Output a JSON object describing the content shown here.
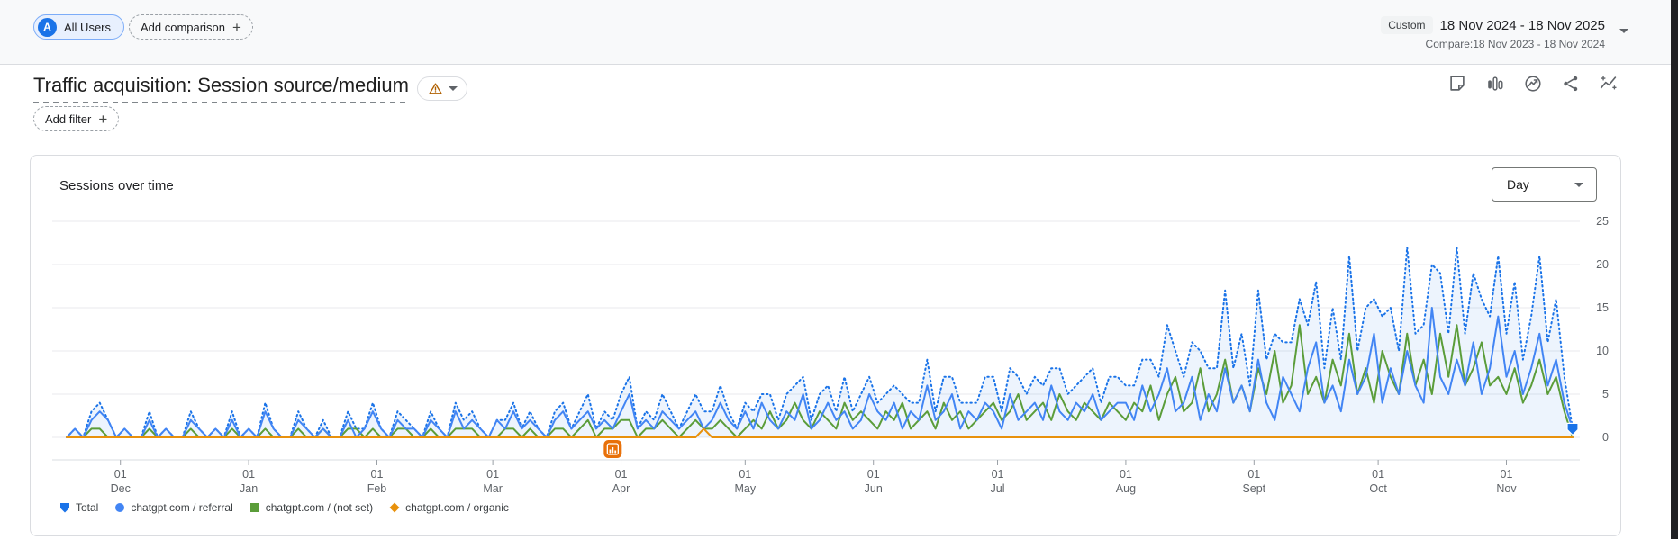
{
  "topbar": {
    "badge_letter": "A",
    "all_users_label": "All Users",
    "add_comparison_label": "Add comparison",
    "custom_label": "Custom",
    "date_range": "18 Nov 2024 - 18 Nov 2025",
    "compare_range": "Compare:18 Nov 2023 - 18 Nov 2024"
  },
  "report": {
    "title": "Traffic acquisition: Session source/medium",
    "add_filter_label": "Add filter",
    "action_icons": [
      "notes-icon",
      "bar-chart-icon",
      "benchmark-icon",
      "share-icon",
      "insights-icon"
    ]
  },
  "card": {
    "title": "Sessions over time",
    "granularity_value": "Day"
  },
  "colors": {
    "accent_blue": "#1a73e8",
    "referral_blue": "#4285f4",
    "notset_green": "#5b9d3a",
    "organic_orange": "#e8910c",
    "anomaly_orange": "#e8710a",
    "area_fill": "rgba(26,115,232,0.08)",
    "grid": "#e8eaed",
    "axis_text": "#5f6368",
    "border": "#dadce0"
  },
  "chart_data": {
    "type": "line",
    "title": "Sessions over time",
    "granularity": "Day",
    "x_range": [
      "18 Nov 2024",
      "18 Nov 2025"
    ],
    "total_days": 364,
    "step_days": 2,
    "ylim": [
      0,
      25
    ],
    "y_ticks": [
      0,
      5,
      10,
      15,
      20,
      25
    ],
    "grid": "horizontal",
    "legend_position": "bottom",
    "anomaly_day": 132,
    "x_ticks": [
      {
        "day": 13,
        "line1": "01",
        "line2": "Dec"
      },
      {
        "day": 44,
        "line1": "01",
        "line2": "Jan"
      },
      {
        "day": 75,
        "line1": "01",
        "line2": "Feb"
      },
      {
        "day": 103,
        "line1": "01",
        "line2": "Mar"
      },
      {
        "day": 134,
        "line1": "01",
        "line2": "Apr"
      },
      {
        "day": 164,
        "line1": "01",
        "line2": "May"
      },
      {
        "day": 195,
        "line1": "01",
        "line2": "Jun"
      },
      {
        "day": 225,
        "line1": "01",
        "line2": "Jul"
      },
      {
        "day": 256,
        "line1": "01",
        "line2": "Aug"
      },
      {
        "day": 287,
        "line1": "01",
        "line2": "Sept"
      },
      {
        "day": 317,
        "line1": "01",
        "line2": "Oct"
      },
      {
        "day": 348,
        "line1": "01",
        "line2": "Nov"
      }
    ],
    "series": [
      {
        "name": "Total",
        "color": "#1a73e8",
        "line_style": "dotted",
        "marker": "pentagon",
        "area_fill": "rgba(26,115,232,0.08)",
        "end_marker": true,
        "values": [
          0,
          1,
          0,
          3,
          4,
          2,
          0,
          1,
          0,
          0,
          3,
          0,
          1,
          0,
          0,
          3,
          1,
          0,
          1,
          0,
          3,
          0,
          1,
          0,
          4,
          1,
          0,
          0,
          3,
          1,
          0,
          2,
          0,
          0,
          3,
          1,
          1,
          4,
          1,
          0,
          3,
          2,
          1,
          0,
          3,
          1,
          0,
          4,
          2,
          3,
          1,
          0,
          2,
          2,
          4,
          1,
          3,
          1,
          0,
          3,
          4,
          1,
          3,
          5,
          1,
          3,
          2,
          5,
          7,
          1,
          3,
          2,
          5,
          3,
          1,
          3,
          5,
          3,
          3,
          6,
          3,
          1,
          4,
          3,
          5,
          5,
          2,
          5,
          6,
          7,
          2,
          5,
          6,
          3,
          7,
          3,
          5,
          7,
          4,
          5,
          6,
          5,
          4,
          4,
          9,
          3,
          7,
          7,
          4,
          4,
          4,
          7,
          7,
          3,
          8,
          7,
          5,
          7,
          6,
          8,
          8,
          5,
          6,
          7,
          8,
          4,
          7,
          7,
          6,
          6,
          9,
          9,
          7,
          13,
          10,
          7,
          11,
          10,
          8,
          8,
          17,
          8,
          12,
          6,
          17,
          9,
          12,
          11,
          11,
          16,
          13,
          18,
          8,
          15,
          9,
          21,
          10,
          15,
          16,
          14,
          15,
          10,
          22,
          12,
          13,
          20,
          19,
          12,
          22,
          12,
          19,
          16,
          14,
          21,
          12,
          18,
          9,
          14,
          21,
          11,
          16,
          7,
          1
        ]
      },
      {
        "name": "chatgpt.com / referral",
        "color": "#4285f4",
        "line_style": "solid",
        "marker": "circle",
        "values": [
          0,
          1,
          0,
          2,
          3,
          2,
          0,
          1,
          0,
          0,
          2,
          0,
          1,
          0,
          0,
          2,
          1,
          0,
          1,
          0,
          2,
          0,
          1,
          0,
          3,
          1,
          0,
          0,
          2,
          1,
          0,
          1,
          0,
          0,
          2,
          0,
          1,
          3,
          1,
          0,
          2,
          1,
          1,
          0,
          2,
          1,
          0,
          3,
          1,
          2,
          1,
          0,
          2,
          1,
          3,
          1,
          2,
          1,
          0,
          2,
          3,
          1,
          2,
          3,
          1,
          2,
          1,
          3,
          5,
          1,
          2,
          1,
          3,
          2,
          1,
          2,
          3,
          1,
          2,
          4,
          2,
          1,
          3,
          1,
          4,
          2,
          1,
          3,
          2,
          5,
          1,
          2,
          4,
          2,
          3,
          1,
          2,
          5,
          3,
          2,
          4,
          1,
          3,
          2,
          6,
          2,
          3,
          5,
          1,
          3,
          2,
          4,
          3,
          1,
          5,
          2,
          3,
          4,
          2,
          6,
          3,
          2,
          4,
          3,
          5,
          2,
          3,
          4,
          4,
          2,
          6,
          3,
          5,
          8,
          3,
          4,
          7,
          2,
          5,
          3,
          8,
          4,
          6,
          3,
          9,
          4,
          2,
          7,
          5,
          3,
          8,
          11,
          4,
          6,
          3,
          9,
          5,
          7,
          12,
          4,
          8,
          5,
          10,
          6,
          4,
          15,
          7,
          5,
          9,
          6,
          11,
          5,
          8,
          14,
          7,
          10,
          5,
          8,
          12,
          6,
          9,
          4,
          1
        ]
      },
      {
        "name": "chatgpt.com / (not set)",
        "color": "#5b9d3a",
        "line_style": "solid",
        "marker": "square",
        "values": [
          0,
          0,
          0,
          1,
          1,
          0,
          0,
          0,
          0,
          0,
          1,
          0,
          0,
          0,
          0,
          1,
          0,
          0,
          0,
          0,
          1,
          0,
          0,
          0,
          1,
          0,
          0,
          0,
          1,
          0,
          0,
          1,
          0,
          0,
          1,
          1,
          0,
          1,
          0,
          0,
          1,
          1,
          0,
          0,
          1,
          0,
          0,
          1,
          1,
          1,
          0,
          0,
          0,
          1,
          1,
          0,
          1,
          0,
          0,
          1,
          1,
          0,
          1,
          2,
          0,
          1,
          1,
          2,
          2,
          0,
          1,
          1,
          2,
          1,
          0,
          1,
          2,
          1,
          1,
          2,
          1,
          0,
          1,
          2,
          1,
          3,
          1,
          2,
          4,
          2,
          1,
          3,
          2,
          1,
          4,
          2,
          3,
          2,
          1,
          3,
          2,
          4,
          1,
          2,
          3,
          1,
          4,
          2,
          3,
          1,
          2,
          3,
          4,
          2,
          3,
          5,
          2,
          3,
          4,
          2,
          5,
          3,
          2,
          4,
          3,
          2,
          4,
          3,
          2,
          4,
          3,
          6,
          2,
          5,
          7,
          3,
          4,
          8,
          3,
          5,
          9,
          4,
          6,
          3,
          8,
          5,
          10,
          4,
          6,
          13,
          5,
          7,
          4,
          9,
          6,
          12,
          5,
          8,
          4,
          10,
          7,
          5,
          12,
          6,
          9,
          5,
          12,
          7,
          13,
          6,
          8,
          11,
          6,
          7,
          5,
          8,
          4,
          6,
          9,
          5,
          7,
          3,
          0
        ]
      },
      {
        "name": "chatgpt.com / organic",
        "color": "#e8910c",
        "line_style": "solid",
        "marker": "diamond",
        "values": [
          0,
          0,
          0,
          0,
          0,
          0,
          0,
          0,
          0,
          0,
          0,
          0,
          0,
          0,
          0,
          0,
          0,
          0,
          0,
          0,
          0,
          0,
          0,
          0,
          0,
          0,
          0,
          0,
          0,
          0,
          0,
          0,
          0,
          0,
          0,
          0,
          0,
          0,
          0,
          0,
          0,
          0,
          0,
          0,
          0,
          0,
          0,
          0,
          0,
          0,
          0,
          0,
          0,
          0,
          0,
          0,
          0,
          0,
          0,
          0,
          0,
          0,
          0,
          0,
          0,
          0,
          0,
          0,
          0,
          0,
          0,
          0,
          0,
          0,
          0,
          0,
          0,
          1,
          0,
          0,
          0,
          0,
          0,
          0,
          0,
          0,
          0,
          0,
          0,
          0,
          0,
          0,
          0,
          0,
          0,
          0,
          0,
          0,
          0,
          0,
          0,
          0,
          0,
          0,
          0,
          0,
          0,
          0,
          0,
          0,
          0,
          0,
          0,
          0,
          0,
          0,
          0,
          0,
          0,
          0,
          0,
          0,
          0,
          0,
          0,
          0,
          0,
          0,
          0,
          0,
          0,
          0,
          0,
          0,
          0,
          0,
          0,
          0,
          0,
          0,
          0,
          0,
          0,
          0,
          0,
          0,
          0,
          0,
          0,
          0,
          0,
          0,
          0,
          0,
          0,
          0,
          0,
          0,
          0,
          0,
          0,
          0,
          0,
          0,
          0,
          0,
          0,
          0,
          0,
          0,
          0,
          0,
          0,
          0,
          0,
          0,
          0,
          0,
          0,
          0,
          0,
          0,
          0
        ]
      }
    ]
  }
}
